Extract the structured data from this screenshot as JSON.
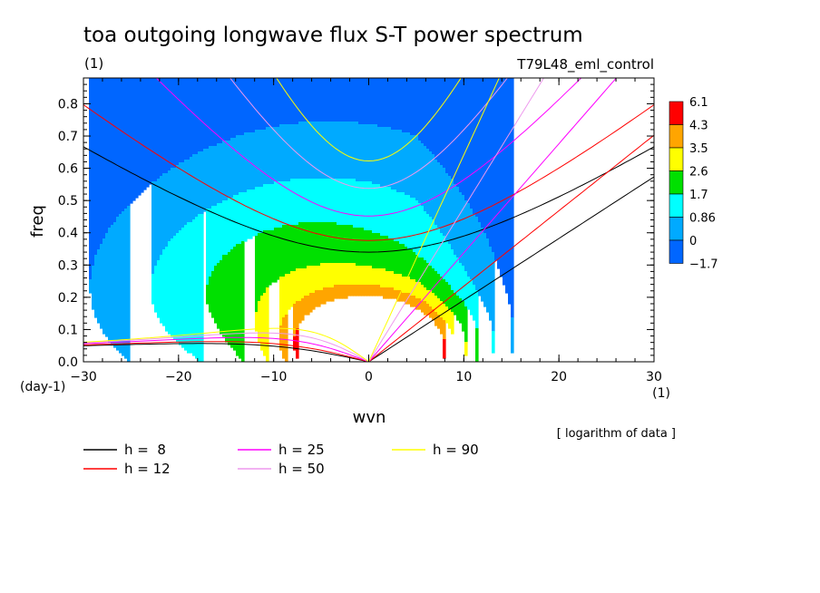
{
  "chart_data": {
    "type": "heatmap",
    "title": "toa outgoing longwave flux S-T power spectrum",
    "subtitle_left": "(1)",
    "subtitle_right": "T79L48_eml_control",
    "xlabel": "wvn",
    "ylabel": "freq",
    "x_unit": "(1)",
    "y_unit": "(day-1)",
    "xlim": [
      -30,
      30
    ],
    "ylim": [
      0,
      0.88
    ],
    "xticks": [
      -30,
      -20,
      -10,
      0,
      10,
      20,
      30
    ],
    "xtick_labels": [
      "−30",
      "−20",
      "−10",
      "0",
      "10",
      "20",
      "30"
    ],
    "yticks": [
      0,
      0.1,
      0.2,
      0.3,
      0.4,
      0.5,
      0.6,
      0.7,
      0.8
    ],
    "ytick_labels": [
      "0.0",
      "0.1",
      "0.2",
      "0.3",
      "0.4",
      "0.5",
      "0.6",
      "0.7",
      "0.8"
    ],
    "note": "[ logarithm of data ]",
    "colorbar": {
      "labels": [
        "6.1",
        "4.3",
        "3.5",
        "2.6",
        "1.7",
        "0.86",
        "0",
        "−1.7"
      ],
      "colors": [
        "#ff0000",
        "#ffa500",
        "#ffff00",
        "#00e000",
        "#00ffff",
        "#00aaff",
        "#0066ff"
      ]
    },
    "contour_levels": [
      -1.7,
      0,
      0.86,
      1.7,
      2.6,
      3.5,
      4.3,
      6.1
    ],
    "dispersion_curves": [
      {
        "name": "h =  8",
        "equivalent_depth": 8,
        "color": "#000000"
      },
      {
        "name": "h = 12",
        "equivalent_depth": 12,
        "color": "#ff0000"
      },
      {
        "name": "h = 25",
        "equivalent_depth": 25,
        "color": "#ff00ff"
      },
      {
        "name": "h = 50",
        "equivalent_depth": 50,
        "color": "#ee99ee"
      },
      {
        "name": "h = 90",
        "equivalent_depth": 90,
        "color": "#ffff00"
      }
    ]
  }
}
